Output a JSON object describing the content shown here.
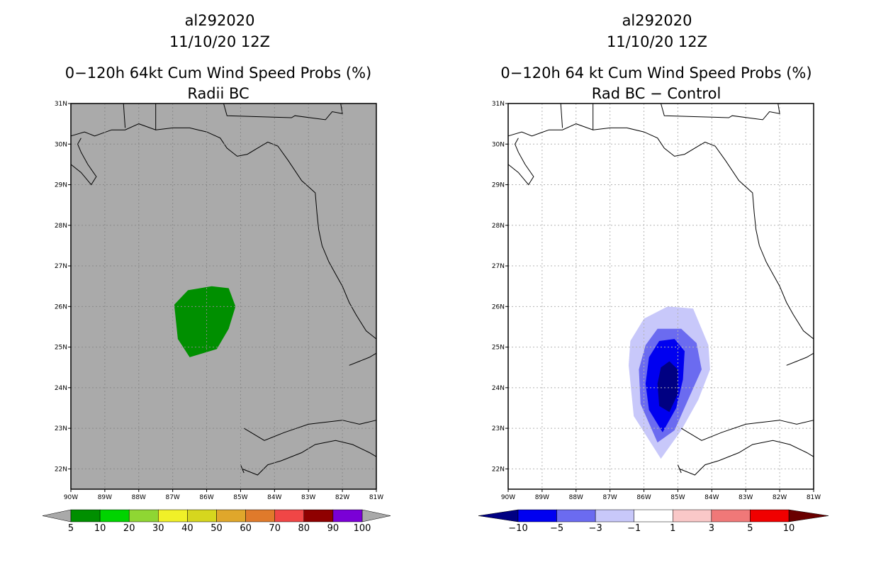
{
  "panels": [
    {
      "id": "left",
      "storm_id": "al292020",
      "date_time": "11/10/20 12Z",
      "title": "0−120h 64kt Cum Wind Speed Probs (%)",
      "subtitle": "Radii BC",
      "background_color": "#aaaaaa",
      "lat_labels": [
        "31N",
        "30N",
        "29N",
        "28N",
        "27N",
        "26N",
        "25N",
        "24N",
        "23N",
        "22N"
      ],
      "lon_labels": [
        "90W",
        "89W",
        "88W",
        "87W",
        "86W",
        "85W",
        "84W",
        "83W",
        "82W",
        "81W"
      ],
      "colorbar_labels": [
        "5",
        "10",
        "20",
        "30",
        "40",
        "50",
        "60",
        "70",
        "80",
        "90",
        "100"
      ],
      "colorbar_colors": [
        "#008f00",
        "#00d400",
        "#8fd633",
        "#f0f028",
        "#d6d61e",
        "#e0a72b",
        "#e07a2b",
        "#f04646",
        "#8f0000",
        "#7a00d6"
      ],
      "colorbar_end_colors": [
        "#a9a9a9",
        "#a9a9a9"
      ],
      "contours": [
        {
          "level": "5-10",
          "color": "#008f00",
          "lonlat": [
            [
              -86.95,
              26.0
            ],
            [
              -86.85,
              25.2
            ],
            [
              -86.5,
              24.75
            ],
            [
              -85.7,
              24.95
            ],
            [
              -85.35,
              25.45
            ],
            [
              -85.15,
              26.0
            ],
            [
              -85.35,
              26.45
            ],
            [
              -85.85,
              26.5
            ],
            [
              -86.55,
              26.4
            ],
            [
              -86.95,
              26.05
            ]
          ]
        }
      ]
    },
    {
      "id": "right",
      "storm_id": "al292020",
      "date_time": "11/10/20 12Z",
      "title": "0−120h 64 kt Cum Wind Speed Probs (%)",
      "subtitle": "Rad BC − Control",
      "background_color": "#ffffff",
      "lat_labels": [
        "31N",
        "30N",
        "29N",
        "28N",
        "27N",
        "26N",
        "25N",
        "24N",
        "23N",
        "22N"
      ],
      "lon_labels": [
        "90W",
        "89W",
        "88W",
        "87W",
        "86W",
        "85W",
        "84W",
        "83W",
        "82W",
        "81W"
      ],
      "colorbar_labels": [
        "−10",
        "−5",
        "−3",
        "−1",
        "1",
        "3",
        "5",
        "10"
      ],
      "colorbar_colors": [
        "#0000f0",
        "#6b6bf0",
        "#c8c8fa",
        "#ffffff",
        "#fac8c8",
        "#f07878",
        "#f00000"
      ],
      "colorbar_end_colors": [
        "#000082",
        "#6a0000"
      ],
      "contours": [
        {
          "level": "-3 to -1",
          "color": "#c8c8fa",
          "lonlat": [
            [
              -86.45,
              24.55
            ],
            [
              -86.3,
              23.3
            ],
            [
              -85.5,
              22.25
            ],
            [
              -84.9,
              22.95
            ],
            [
              -84.4,
              23.7
            ],
            [
              -84.05,
              24.45
            ],
            [
              -84.1,
              25.05
            ],
            [
              -84.55,
              25.95
            ],
            [
              -85.3,
              26.0
            ],
            [
              -86.0,
              25.7
            ],
            [
              -86.4,
              25.15
            ]
          ]
        },
        {
          "level": "-5 to -3",
          "color": "#6b6bf0",
          "lonlat": [
            [
              -86.15,
              24.45
            ],
            [
              -86.1,
              23.6
            ],
            [
              -85.6,
              22.65
            ],
            [
              -85.1,
              22.95
            ],
            [
              -84.7,
              23.7
            ],
            [
              -84.3,
              24.45
            ],
            [
              -84.45,
              25.1
            ],
            [
              -84.9,
              25.45
            ],
            [
              -85.6,
              25.45
            ],
            [
              -85.95,
              25.05
            ]
          ]
        },
        {
          "level": "-10 to -5",
          "color": "#0000f0",
          "lonlat": [
            [
              -85.95,
              24.1
            ],
            [
              -85.85,
              23.45
            ],
            [
              -85.45,
              22.9
            ],
            [
              -85.05,
              23.5
            ],
            [
              -84.85,
              24.2
            ],
            [
              -84.8,
              24.9
            ],
            [
              -85.1,
              25.2
            ],
            [
              -85.55,
              25.15
            ],
            [
              -85.85,
              24.75
            ]
          ]
        },
        {
          "level": "< -10",
          "color": "#000082",
          "lonlat": [
            [
              -85.6,
              24.1
            ],
            [
              -85.55,
              23.55
            ],
            [
              -85.25,
              23.4
            ],
            [
              -85.0,
              23.85
            ],
            [
              -85.0,
              24.45
            ],
            [
              -85.25,
              24.65
            ],
            [
              -85.5,
              24.5
            ]
          ]
        }
      ]
    }
  ],
  "map": {
    "lon_range": [
      -90,
      -81
    ],
    "lat_range": [
      21.5,
      31
    ],
    "coastlines_lonlat": [
      [
        [
          -90.0,
          30.2
        ],
        [
          -89.6,
          30.3
        ],
        [
          -89.3,
          30.2
        ],
        [
          -88.8,
          30.35
        ],
        [
          -88.4,
          30.35
        ],
        [
          -88.0,
          30.5
        ],
        [
          -87.5,
          30.35
        ],
        [
          -87.0,
          30.4
        ],
        [
          -86.5,
          30.4
        ],
        [
          -86.0,
          30.3
        ],
        [
          -85.6,
          30.15
        ],
        [
          -85.4,
          29.9
        ],
        [
          -85.1,
          29.7
        ],
        [
          -84.8,
          29.75
        ],
        [
          -84.4,
          29.95
        ],
        [
          -84.2,
          30.05
        ],
        [
          -83.9,
          29.95
        ],
        [
          -83.6,
          29.6
        ],
        [
          -83.2,
          29.1
        ],
        [
          -82.8,
          28.8
        ],
        [
          -82.75,
          28.3
        ],
        [
          -82.7,
          27.9
        ],
        [
          -82.6,
          27.5
        ],
        [
          -82.4,
          27.1
        ],
        [
          -82.2,
          26.8
        ],
        [
          -82.0,
          26.5
        ],
        [
          -81.8,
          26.1
        ],
        [
          -81.6,
          25.8
        ],
        [
          -81.3,
          25.4
        ],
        [
          -81.0,
          25.2
        ]
      ],
      [
        [
          -90.0,
          29.5
        ],
        [
          -89.7,
          29.3
        ],
        [
          -89.4,
          29.0
        ],
        [
          -89.25,
          29.2
        ],
        [
          -89.5,
          29.5
        ],
        [
          -89.7,
          29.8
        ],
        [
          -89.8,
          30.0
        ],
        [
          -89.7,
          30.15
        ]
      ],
      [
        [
          -84.9,
          23.0
        ],
        [
          -84.3,
          22.7
        ],
        [
          -83.7,
          22.9
        ],
        [
          -83.0,
          23.1
        ],
        [
          -82.5,
          23.15
        ],
        [
          -82.0,
          23.2
        ],
        [
          -81.5,
          23.1
        ],
        [
          -81.0,
          23.2
        ]
      ],
      [
        [
          -84.95,
          22.0
        ],
        [
          -84.5,
          21.85
        ],
        [
          -84.2,
          22.1
        ],
        [
          -83.8,
          22.2
        ],
        [
          -83.2,
          22.4
        ],
        [
          -82.8,
          22.6
        ],
        [
          -82.2,
          22.7
        ],
        [
          -81.7,
          22.6
        ],
        [
          -81.2,
          22.4
        ],
        [
          -81.0,
          22.3
        ]
      ],
      [
        [
          -84.95,
          22.0
        ],
        [
          -85.0,
          22.1
        ],
        [
          -84.9,
          21.9
        ]
      ],
      [
        [
          -81.8,
          24.55
        ],
        [
          -81.5,
          24.65
        ],
        [
          -81.2,
          24.75
        ],
        [
          -81.0,
          24.85
        ]
      ],
      [
        [
          -85.5,
          31.0
        ],
        [
          -85.4,
          30.7
        ],
        [
          -83.5,
          30.65
        ],
        [
          -83.4,
          30.7
        ],
        [
          -82.5,
          30.6
        ],
        [
          -82.3,
          30.8
        ],
        [
          -82.0,
          30.75
        ],
        [
          -82.05,
          31.0
        ]
      ],
      [
        [
          -88.4,
          30.4
        ],
        [
          -88.45,
          31.0
        ]
      ],
      [
        [
          -87.5,
          30.35
        ],
        [
          -87.5,
          31.0
        ]
      ]
    ]
  }
}
